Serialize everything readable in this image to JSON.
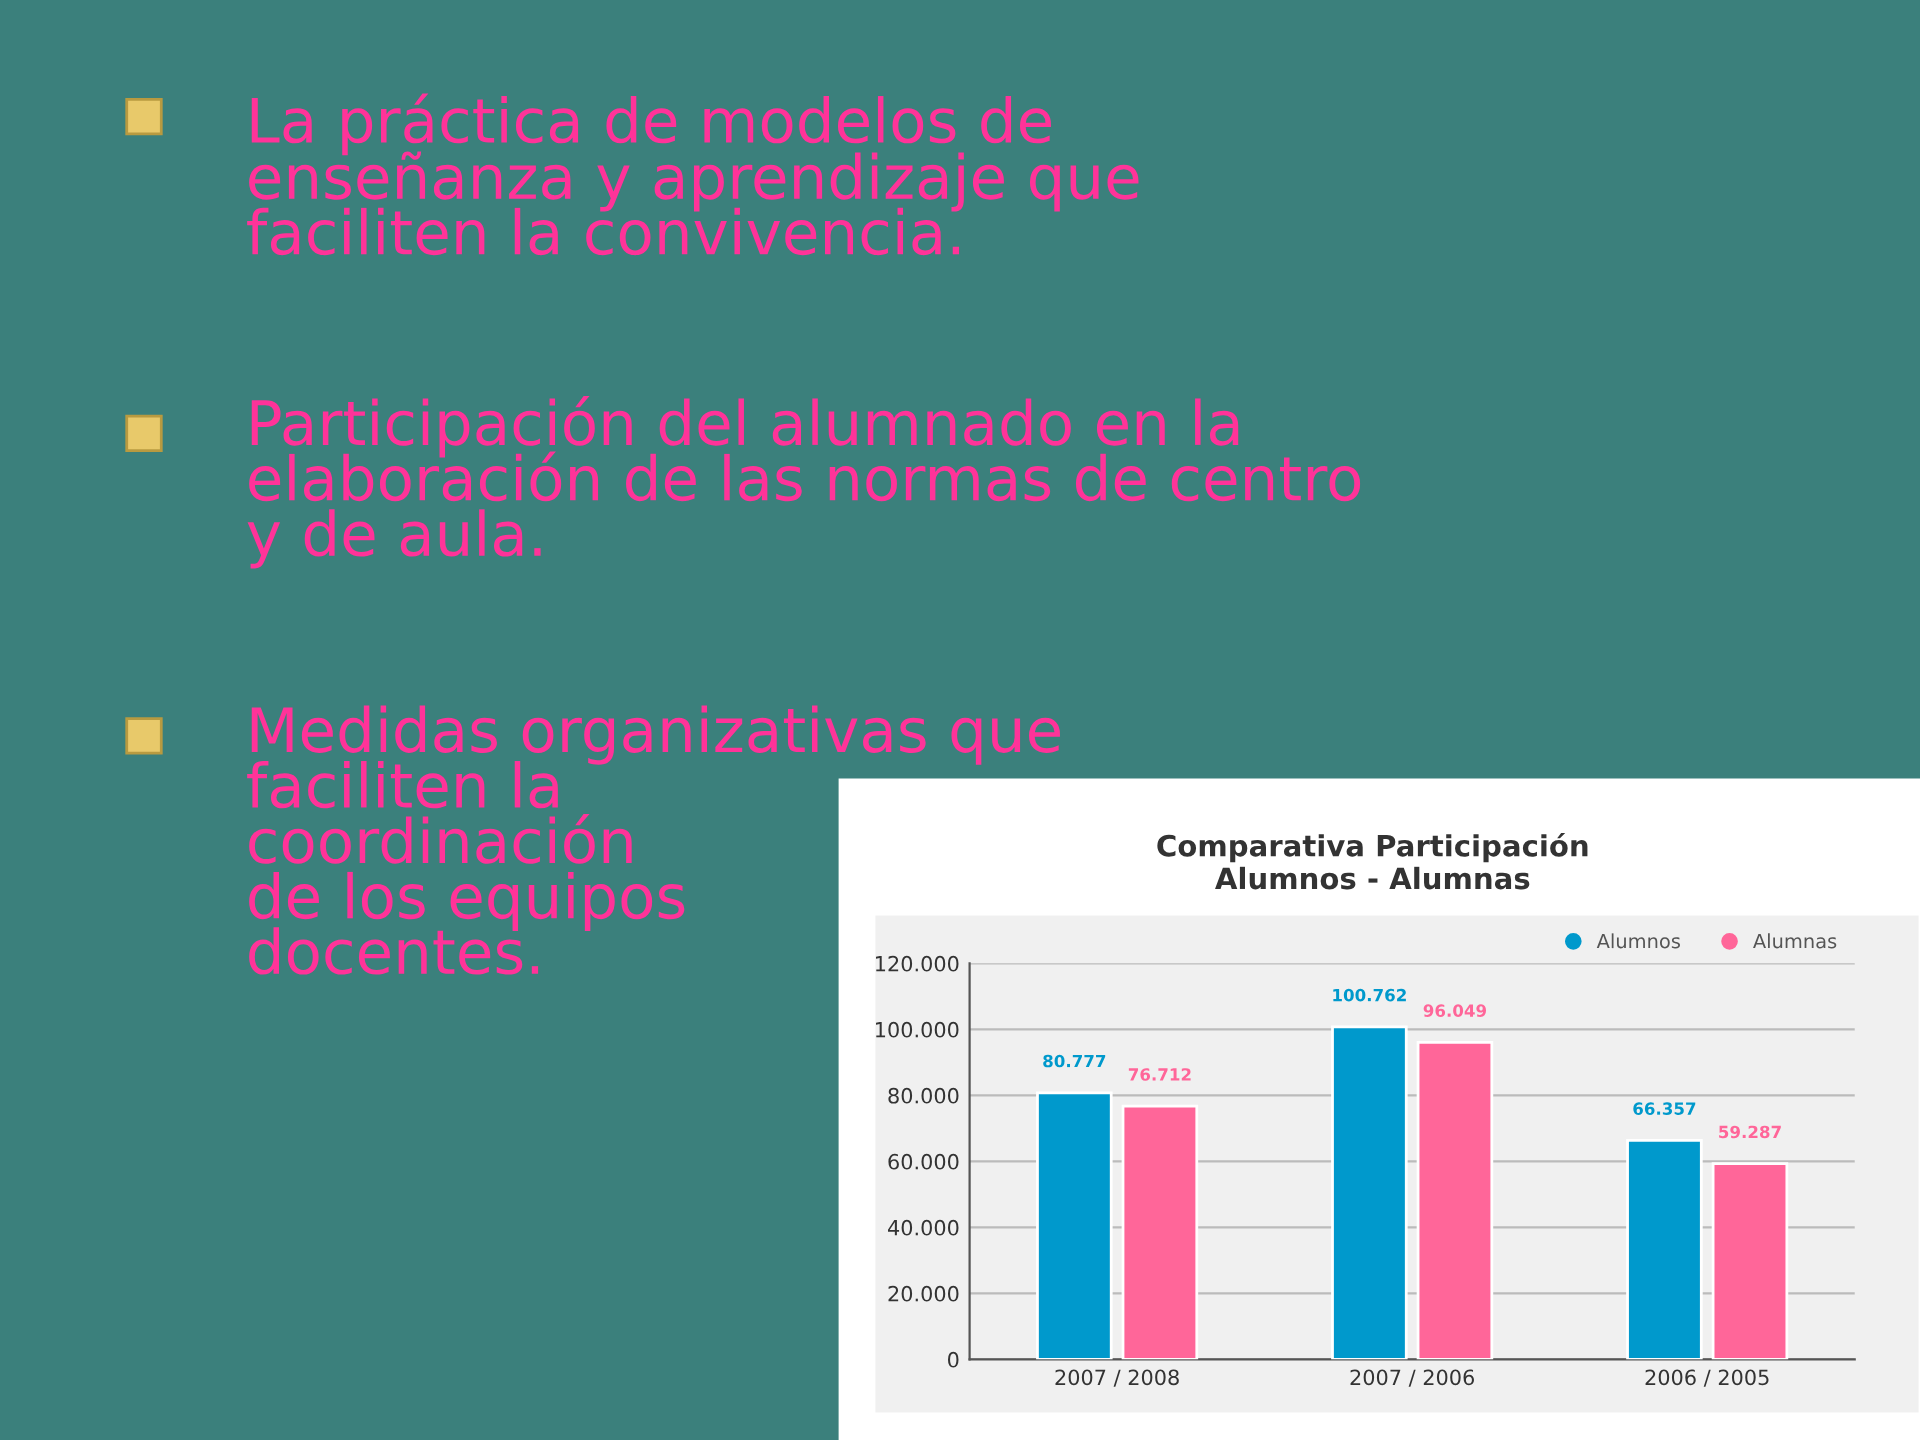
{
  "chart_data": {
    "type": "bar",
    "title": "Comparativa Participación\nAlumnos - Alumnas",
    "categories": [
      "2007 / 2008",
      "2007 / 2006",
      "2006 / 2005"
    ],
    "series": [
      {
        "name": "Alumnos",
        "color": "#0099cc",
        "values": [
          80777,
          100762,
          66357
        ],
        "value_labels": [
          "80.777",
          "100.762",
          "66.357"
        ]
      },
      {
        "name": "Alumnas",
        "color": "#ff6699",
        "values": [
          76712,
          96049,
          59287
        ],
        "value_labels": [
          "76.712",
          "96.049",
          "59.287"
        ]
      }
    ],
    "ylim": [
      0,
      120000
    ],
    "yticks": [
      {
        "value": 0,
        "label": "0"
      },
      {
        "value": 20000,
        "label": "20.000"
      },
      {
        "value": 40000,
        "label": "40.000"
      },
      {
        "value": 60000,
        "label": "60.000"
      },
      {
        "value": 80000,
        "label": "80.000"
      },
      {
        "value": 100000,
        "label": "100.000"
      },
      {
        "value": 120000,
        "label": "120.000"
      }
    ],
    "grid": "y",
    "legend": "top right",
    "annotations": [
      "La práctica de modelos de\nenseñanza y aprendizaje que\nfaciliten la convivencia.",
      "Participación del alumnado en la\nelaboración de las normas de centro\ny de aula.",
      "Medidas organizativas que\nfaciliten la\ncoordinación\nde los equipos\ndocentes."
    ]
  }
}
